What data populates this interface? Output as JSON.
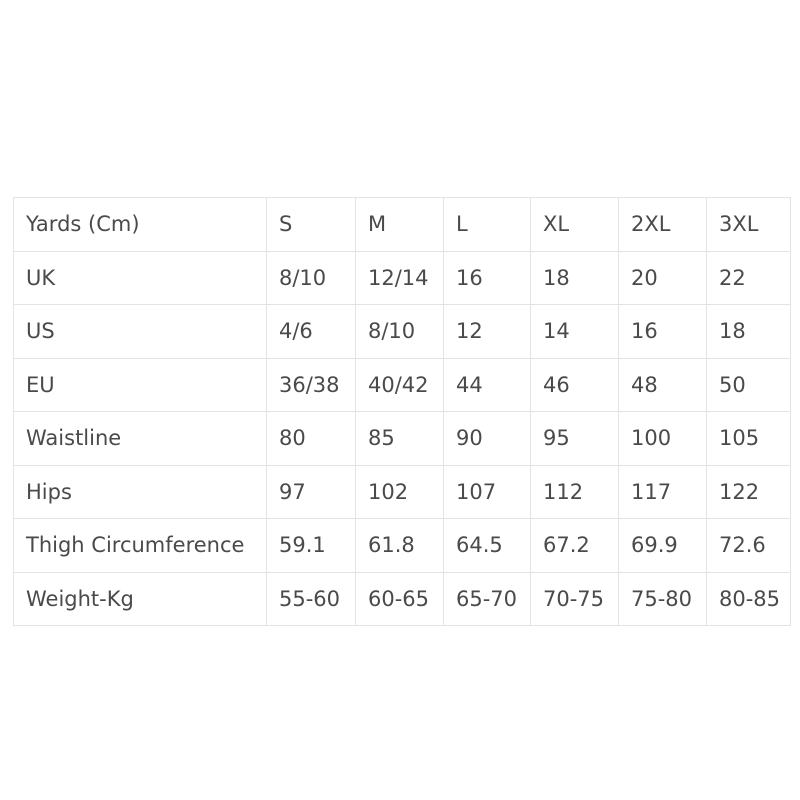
{
  "table": {
    "header": {
      "label": "Yards (Cm)",
      "sizes": [
        "S",
        "M",
        "L",
        "XL",
        "2XL",
        "3XL"
      ]
    },
    "rows": [
      {
        "label": "UK",
        "values": [
          "8/10",
          "12/14",
          "16",
          "18",
          "20",
          "22"
        ]
      },
      {
        "label": "US",
        "values": [
          "4/6",
          "8/10",
          "12",
          "14",
          "16",
          "18"
        ]
      },
      {
        "label": "EU",
        "values": [
          "36/38",
          "40/42",
          "44",
          "46",
          "48",
          "50"
        ]
      },
      {
        "label": "Waistline",
        "values": [
          "80",
          "85",
          "90",
          "95",
          "100",
          "105"
        ]
      },
      {
        "label": "Hips",
        "values": [
          "97",
          "102",
          "107",
          "112",
          "117",
          "122"
        ]
      },
      {
        "label": "Thigh Circumference",
        "values": [
          "59.1",
          "61.8",
          "64.5",
          "67.2",
          "69.9",
          "72.6"
        ]
      },
      {
        "label": "Weight-Kg",
        "values": [
          "55-60",
          "60-65",
          "65-70",
          "70-75",
          "75-80",
          "80-85"
        ]
      }
    ]
  }
}
